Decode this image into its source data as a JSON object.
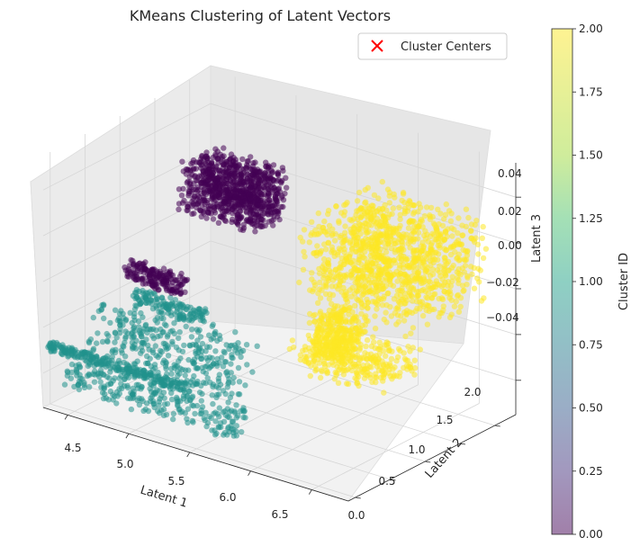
{
  "chart_data": {
    "type": "scatter",
    "title": "KMeans Clustering of Latent Vectors",
    "xlabel": "Latent 1",
    "ylabel": "Latent 2",
    "zlabel": "Latent 3",
    "x_ticks": [
      "4.5",
      "5.0",
      "5.5",
      "6.0",
      "6.5"
    ],
    "y_ticks": [
      "0.0",
      "0.5",
      "1.0",
      "1.5",
      "2.0"
    ],
    "z_ticks": [
      "−0.04",
      "−0.02",
      "0.00",
      "0.02",
      "0.04"
    ],
    "xlim": [
      4.3,
      6.8
    ],
    "ylim": [
      -0.1,
      2.3
    ],
    "zlim": [
      -0.055,
      0.055
    ],
    "grid": true,
    "legend": {
      "placement": "top-right",
      "entries": [
        {
          "label": "Cluster Centers",
          "marker": "x",
          "color": "#ff0000"
        }
      ]
    },
    "colorbar": {
      "label": "Cluster ID",
      "range": [
        0.0,
        2.0
      ],
      "ticks": [
        "0.00",
        "0.25",
        "0.50",
        "0.75",
        "1.00",
        "1.25",
        "1.50",
        "1.75",
        "2.00"
      ],
      "colormap": "viridis"
    },
    "series": [
      {
        "cluster_id": 0,
        "color": "#440154",
        "blobs": [
          {
            "x": [
              4.72,
              5.34
            ],
            "y": [
              1.1,
              1.62
            ],
            "z": [
              0.018,
              0.04
            ],
            "n": 900
          },
          {
            "x": [
              4.65,
              5.12
            ],
            "y": [
              0.42,
              0.56
            ],
            "z": [
              -0.002,
              0.006
            ],
            "n": 180
          }
        ]
      },
      {
        "cluster_id": 1,
        "color": "#21918c",
        "blobs": [
          {
            "x": [
              4.7,
              5.28
            ],
            "y": [
              0.42,
              0.56
            ],
            "z": [
              -0.012,
              -0.006
            ],
            "n": 140
          },
          {
            "x": [
              4.55,
              5.7
            ],
            "y": [
              0.05,
              0.55
            ],
            "z": [
              -0.036,
              -0.01
            ],
            "n": 360
          },
          {
            "x": [
              4.28,
              5.4
            ],
            "y": [
              -0.02,
              0.04
            ],
            "z": [
              -0.032,
              -0.028
            ],
            "n": 230
          },
          {
            "x": [
              4.4,
              5.85
            ],
            "y": [
              -0.05,
              0.2
            ],
            "z": [
              -0.046,
              -0.034
            ],
            "n": 260
          }
        ]
      },
      {
        "cluster_id": 2,
        "color": "#fde725",
        "blobs": [
          {
            "x": [
              5.72,
              6.65
            ],
            "y": [
              1.05,
              2.2
            ],
            "z": [
              -0.006,
              0.032
            ],
            "n": 1100
          },
          {
            "x": [
              5.85,
              6.15
            ],
            "y": [
              0.95,
              1.35
            ],
            "z": [
              -0.024,
              -0.005
            ],
            "n": 260
          },
          {
            "x": [
              5.72,
              6.45
            ],
            "y": [
              0.9,
              1.55
            ],
            "z": [
              -0.032,
              -0.018
            ],
            "n": 320
          }
        ]
      }
    ]
  }
}
